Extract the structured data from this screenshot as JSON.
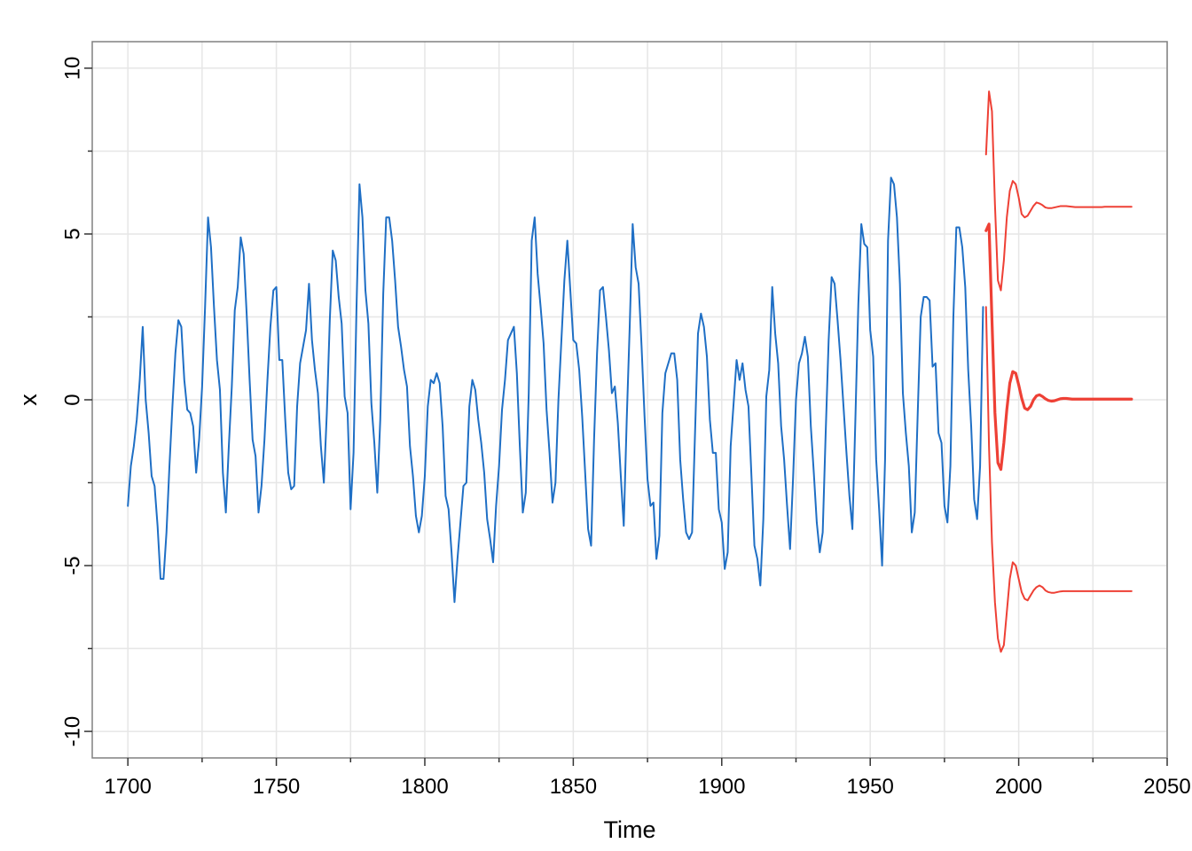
{
  "chart_data": {
    "type": "line",
    "title": "",
    "xlabel": "Time",
    "ylabel": "x",
    "xlim": [
      1688,
      2050
    ],
    "ylim": [
      -10.8,
      10.8
    ],
    "x_ticks": [
      1700,
      1750,
      1800,
      1850,
      1900,
      1950,
      2000,
      2050
    ],
    "y_ticks": [
      -10,
      -5,
      0,
      5,
      10
    ],
    "x_tick_labels": [
      "1700",
      "1750",
      "1800",
      "1850",
      "1900",
      "1950",
      "2000",
      "2050"
    ],
    "y_tick_labels": [
      "-10",
      "-5",
      "0",
      "5",
      "10"
    ],
    "grid": true,
    "colors": {
      "observed": "#1f6fc5",
      "forecast": "#ee4035",
      "grid": "#e6e6e6",
      "frame": "#808080"
    },
    "series": [
      {
        "role": "observed",
        "x_start": 1700,
        "x_step": 1,
        "values": [
          -3.2,
          -2.0,
          -1.4,
          -0.6,
          0.6,
          2.2,
          0.0,
          -1.0,
          -2.3,
          -2.6,
          -3.8,
          -5.4,
          -5.4,
          -4.0,
          -2.0,
          -0.2,
          1.4,
          2.4,
          2.2,
          0.6,
          -0.3,
          -0.4,
          -0.8,
          -2.2,
          -1.2,
          0.4,
          2.8,
          5.5,
          4.6,
          2.8,
          1.2,
          0.3,
          -2.2,
          -3.4,
          -1.4,
          0.4,
          2.7,
          3.4,
          4.9,
          4.4,
          2.6,
          0.6,
          -1.2,
          -1.7,
          -3.4,
          -2.6,
          -1.2,
          0.6,
          2.2,
          3.3,
          3.4,
          1.2,
          1.2,
          -0.6,
          -2.2,
          -2.7,
          -2.6,
          -0.2,
          1.1,
          1.6,
          2.1,
          3.5,
          1.8,
          0.9,
          0.2,
          -1.4,
          -2.5,
          -0.4,
          2.4,
          4.5,
          4.2,
          3.1,
          2.3,
          0.1,
          -0.4,
          -3.3,
          -1.6,
          2.8,
          6.5,
          5.5,
          3.3,
          2.3,
          -0.1,
          -1.3,
          -2.8,
          -0.6,
          3.2,
          5.5,
          5.5,
          4.8,
          3.6,
          2.2,
          1.6,
          0.9,
          0.4,
          -1.4,
          -2.3,
          -3.5,
          -4.0,
          -3.5,
          -2.3,
          -0.2,
          0.6,
          0.5,
          0.8,
          0.5,
          -0.8,
          -2.9,
          -3.3,
          -4.6,
          -6.1,
          -4.8,
          -3.7,
          -2.6,
          -2.5,
          -0.2,
          0.6,
          0.3,
          -0.6,
          -1.3,
          -2.2,
          -3.6,
          -4.2,
          -4.9,
          -3.2,
          -2.0,
          -0.3,
          0.6,
          1.8,
          2.0,
          2.2,
          0.8,
          -1.4,
          -3.4,
          -2.8,
          0.2,
          4.8,
          5.5,
          3.8,
          2.8,
          1.7,
          -0.3,
          -1.6,
          -3.1,
          -2.5,
          0.0,
          1.8,
          3.6,
          4.8,
          3.3,
          1.8,
          1.7,
          0.9,
          -0.5,
          -2.2,
          -3.9,
          -4.4,
          -1.2,
          1.4,
          3.3,
          3.4,
          2.5,
          1.5,
          0.2,
          0.4,
          -0.7,
          -2.3,
          -3.8,
          -0.6,
          2.2,
          5.3,
          4.0,
          3.5,
          1.6,
          -0.5,
          -2.4,
          -3.2,
          -3.1,
          -4.8,
          -4.1,
          -0.4,
          0.8,
          1.1,
          1.4,
          1.4,
          0.6,
          -1.8,
          -3.0,
          -4.0,
          -4.2,
          -4.0,
          -1.0,
          2.0,
          2.6,
          2.2,
          1.3,
          -0.6,
          -1.6,
          -1.6,
          -3.3,
          -3.7,
          -5.1,
          -4.6,
          -1.4,
          -0.1,
          1.2,
          0.6,
          1.1,
          0.3,
          -0.2,
          -2.3,
          -4.4,
          -4.8,
          -5.6,
          -3.6,
          0.1,
          0.9,
          3.4,
          2.0,
          1.1,
          -0.8,
          -1.8,
          -3.2,
          -4.5,
          -2.4,
          0.0,
          1.1,
          1.4,
          1.9,
          1.3,
          -0.8,
          -2.2,
          -3.7,
          -4.6,
          -4.0,
          -1.0,
          1.8,
          3.7,
          3.5,
          2.4,
          1.2,
          -0.2,
          -1.6,
          -2.9,
          -3.9,
          -0.6,
          2.9,
          5.3,
          4.7,
          4.6,
          2.1,
          1.3,
          -1.8,
          -3.3,
          -5.0,
          -1.8,
          4.8,
          6.7,
          6.5,
          5.5,
          3.5,
          0.2,
          -1.0,
          -2.0,
          -4.0,
          -3.4,
          -0.4,
          2.5,
          3.1,
          3.1,
          3.0,
          1.0,
          1.1,
          -1.0,
          -1.3,
          -3.2,
          -3.7,
          -2.0,
          2.5,
          5.2,
          5.2,
          4.6,
          3.4,
          0.9,
          -0.8,
          -3.0,
          -3.6,
          -2.0,
          2.8
        ]
      },
      {
        "role": "forecast-point",
        "x_start": 1989,
        "x_step": 1,
        "values": [
          5.1,
          5.3,
          2.4,
          -0.4,
          -1.9,
          -2.1,
          -1.3,
          -0.3,
          0.5,
          0.85,
          0.8,
          0.45,
          0.05,
          -0.25,
          -0.3,
          -0.2,
          0.0,
          0.12,
          0.15,
          0.1,
          0.03,
          -0.02,
          -0.04,
          -0.03,
          0.0,
          0.03,
          0.04,
          0.04,
          0.03,
          0.02,
          0.02,
          0.02,
          0.02,
          0.02,
          0.02,
          0.02,
          0.02,
          0.02,
          0.02,
          0.02,
          0.02,
          0.02,
          0.02,
          0.02,
          0.02,
          0.02,
          0.02,
          0.02,
          0.02,
          0.02
        ]
      },
      {
        "role": "forecast-upper",
        "x_start": 1989,
        "x_step": 1,
        "values": [
          7.4,
          9.3,
          8.7,
          5.9,
          3.6,
          3.3,
          4.2,
          5.5,
          6.3,
          6.6,
          6.5,
          6.1,
          5.6,
          5.5,
          5.55,
          5.7,
          5.85,
          5.95,
          5.92,
          5.87,
          5.8,
          5.78,
          5.78,
          5.8,
          5.82,
          5.84,
          5.84,
          5.84,
          5.83,
          5.82,
          5.81,
          5.81,
          5.81,
          5.81,
          5.81,
          5.81,
          5.81,
          5.81,
          5.81,
          5.81,
          5.82,
          5.82,
          5.82,
          5.82,
          5.82,
          5.82,
          5.82,
          5.82,
          5.82,
          5.82
        ]
      },
      {
        "role": "forecast-lower",
        "x_start": 1989,
        "x_step": 1,
        "values": [
          2.8,
          -1.4,
          -4.3,
          -6.1,
          -7.2,
          -7.6,
          -7.4,
          -6.4,
          -5.4,
          -4.9,
          -5.0,
          -5.4,
          -5.8,
          -6.0,
          -6.05,
          -5.9,
          -5.75,
          -5.65,
          -5.6,
          -5.65,
          -5.75,
          -5.8,
          -5.82,
          -5.82,
          -5.8,
          -5.78,
          -5.77,
          -5.77,
          -5.77,
          -5.77,
          -5.77,
          -5.77,
          -5.77,
          -5.77,
          -5.77,
          -5.77,
          -5.77,
          -5.77,
          -5.77,
          -5.77,
          -5.77,
          -5.77,
          -5.77,
          -5.77,
          -5.77,
          -5.77,
          -5.77,
          -5.77,
          -5.77,
          -5.77
        ]
      }
    ]
  }
}
